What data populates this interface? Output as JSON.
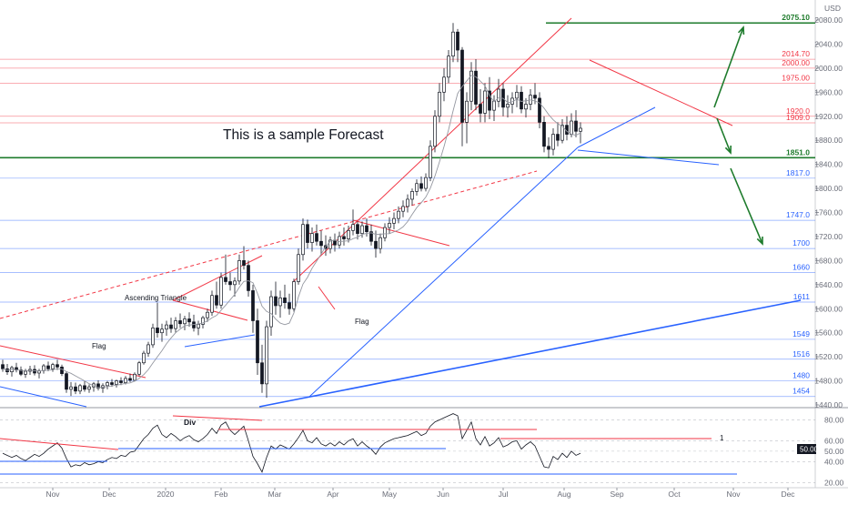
{
  "chart_data": {
    "type": "candlestick",
    "currency_label": "USD",
    "annotation_text": "This is a sample Forecast",
    "price_axis": {
      "ylim": [
        1440,
        2100
      ],
      "ticks": [
        1440,
        1480,
        1520,
        1560,
        1600,
        1640,
        1680,
        1720,
        1760,
        1800,
        1840,
        1880,
        1920,
        1960,
        2000,
        2040,
        2080
      ]
    },
    "time_axis": {
      "labels": [
        "Nov",
        "Dec",
        "2020",
        "Feb",
        "Mar",
        "Apr",
        "May",
        "Jun",
        "Jul",
        "Aug",
        "Sep",
        "Oct",
        "Nov",
        "Dec"
      ]
    },
    "levels": [
      {
        "value": 2075.1,
        "label": "2075.10",
        "color": "#1e7b2c",
        "kind": "major-green"
      },
      {
        "value": 2014.7,
        "label": "2014.70",
        "color": "#f23645",
        "kind": "red"
      },
      {
        "value": 2000.0,
        "label": "2000.00",
        "color": "#f23645",
        "kind": "red"
      },
      {
        "value": 1975.0,
        "label": "1975.00",
        "color": "#f23645",
        "kind": "red"
      },
      {
        "value": 1920.0,
        "label": "1920.0",
        "color": "#f23645",
        "kind": "red"
      },
      {
        "value": 1909.0,
        "label": "1909.0",
        "color": "#f23645",
        "kind": "red"
      },
      {
        "value": 1851.0,
        "label": "1851.0",
        "color": "#1e7b2c",
        "kind": "major-green"
      },
      {
        "value": 1817.0,
        "label": "1817.0",
        "color": "#2962ff",
        "kind": "blue"
      },
      {
        "value": 1747.0,
        "label": "1747.0",
        "color": "#2962ff",
        "kind": "blue"
      },
      {
        "value": 1700,
        "label": "1700",
        "color": "#2962ff",
        "kind": "blue"
      },
      {
        "value": 1660,
        "label": "1660",
        "color": "#2962ff",
        "kind": "blue"
      },
      {
        "value": 1611,
        "label": "1611",
        "color": "#2962ff",
        "kind": "blue"
      },
      {
        "value": 1549,
        "label": "1549",
        "color": "#2962ff",
        "kind": "blue"
      },
      {
        "value": 1516,
        "label": "1516",
        "color": "#2962ff",
        "kind": "blue"
      },
      {
        "value": 1480,
        "label": "1480",
        "color": "#2962ff",
        "kind": "blue"
      },
      {
        "value": 1454,
        "label": "1454",
        "color": "#2962ff",
        "kind": "blue"
      }
    ],
    "pattern_labels": [
      "Ascending Triangle",
      "Flag",
      "Flag"
    ],
    "candles": [
      {
        "t": 0,
        "o": 1507,
        "h": 1515,
        "l": 1495,
        "c": 1500
      },
      {
        "t": 1,
        "o": 1500,
        "h": 1508,
        "l": 1490,
        "c": 1495
      },
      {
        "t": 2,
        "o": 1495,
        "h": 1505,
        "l": 1487,
        "c": 1502
      },
      {
        "t": 3,
        "o": 1502,
        "h": 1510,
        "l": 1494,
        "c": 1498
      },
      {
        "t": 4,
        "o": 1498,
        "h": 1504,
        "l": 1488,
        "c": 1491
      },
      {
        "t": 5,
        "o": 1491,
        "h": 1500,
        "l": 1485,
        "c": 1496
      },
      {
        "t": 6,
        "o": 1496,
        "h": 1505,
        "l": 1490,
        "c": 1499
      },
      {
        "t": 7,
        "o": 1499,
        "h": 1506,
        "l": 1489,
        "c": 1493
      },
      {
        "t": 8,
        "o": 1493,
        "h": 1500,
        "l": 1484,
        "c": 1497
      },
      {
        "t": 9,
        "o": 1497,
        "h": 1508,
        "l": 1492,
        "c": 1505
      },
      {
        "t": 10,
        "o": 1505,
        "h": 1512,
        "l": 1496,
        "c": 1500
      },
      {
        "t": 11,
        "o": 1500,
        "h": 1510,
        "l": 1495,
        "c": 1507
      },
      {
        "t": 12,
        "o": 1507,
        "h": 1515,
        "l": 1498,
        "c": 1503
      },
      {
        "t": 13,
        "o": 1503,
        "h": 1507,
        "l": 1488,
        "c": 1492
      },
      {
        "t": 14,
        "o": 1492,
        "h": 1496,
        "l": 1460,
        "c": 1466
      },
      {
        "t": 15,
        "o": 1466,
        "h": 1478,
        "l": 1455,
        "c": 1470
      },
      {
        "t": 16,
        "o": 1470,
        "h": 1477,
        "l": 1458,
        "c": 1463
      },
      {
        "t": 17,
        "o": 1463,
        "h": 1475,
        "l": 1458,
        "c": 1472
      },
      {
        "t": 18,
        "o": 1472,
        "h": 1480,
        "l": 1462,
        "c": 1466
      },
      {
        "t": 19,
        "o": 1466,
        "h": 1474,
        "l": 1460,
        "c": 1470
      },
      {
        "t": 20,
        "o": 1470,
        "h": 1478,
        "l": 1462,
        "c": 1475
      },
      {
        "t": 21,
        "o": 1475,
        "h": 1481,
        "l": 1464,
        "c": 1468
      },
      {
        "t": 22,
        "o": 1468,
        "h": 1476,
        "l": 1460,
        "c": 1472
      },
      {
        "t": 23,
        "o": 1472,
        "h": 1480,
        "l": 1466,
        "c": 1477
      },
      {
        "t": 24,
        "o": 1477,
        "h": 1483,
        "l": 1470,
        "c": 1474
      },
      {
        "t": 25,
        "o": 1474,
        "h": 1482,
        "l": 1469,
        "c": 1480
      },
      {
        "t": 26,
        "o": 1480,
        "h": 1486,
        "l": 1473,
        "c": 1477
      },
      {
        "t": 27,
        "o": 1477,
        "h": 1488,
        "l": 1474,
        "c": 1484
      },
      {
        "t": 28,
        "o": 1484,
        "h": 1492,
        "l": 1478,
        "c": 1481
      },
      {
        "t": 29,
        "o": 1481,
        "h": 1494,
        "l": 1479,
        "c": 1491
      },
      {
        "t": 30,
        "o": 1491,
        "h": 1513,
        "l": 1488,
        "c": 1510
      },
      {
        "t": 31,
        "o": 1510,
        "h": 1530,
        "l": 1507,
        "c": 1526
      },
      {
        "t": 32,
        "o": 1526,
        "h": 1545,
        "l": 1520,
        "c": 1540
      },
      {
        "t": 33,
        "o": 1540,
        "h": 1575,
        "l": 1535,
        "c": 1568
      },
      {
        "t": 34,
        "o": 1568,
        "h": 1610,
        "l": 1552,
        "c": 1560
      },
      {
        "t": 35,
        "o": 1560,
        "h": 1575,
        "l": 1545,
        "c": 1566
      },
      {
        "t": 36,
        "o": 1566,
        "h": 1580,
        "l": 1555,
        "c": 1573
      },
      {
        "t": 37,
        "o": 1573,
        "h": 1585,
        "l": 1560,
        "c": 1567
      },
      {
        "t": 38,
        "o": 1567,
        "h": 1586,
        "l": 1560,
        "c": 1580
      },
      {
        "t": 39,
        "o": 1580,
        "h": 1592,
        "l": 1568,
        "c": 1575
      },
      {
        "t": 40,
        "o": 1575,
        "h": 1588,
        "l": 1564,
        "c": 1583
      },
      {
        "t": 41,
        "o": 1583,
        "h": 1594,
        "l": 1570,
        "c": 1578
      },
      {
        "t": 42,
        "o": 1578,
        "h": 1590,
        "l": 1562,
        "c": 1568
      },
      {
        "t": 43,
        "o": 1568,
        "h": 1580,
        "l": 1556,
        "c": 1574
      },
      {
        "t": 44,
        "o": 1574,
        "h": 1588,
        "l": 1567,
        "c": 1585
      },
      {
        "t": 45,
        "o": 1585,
        "h": 1600,
        "l": 1578,
        "c": 1594
      },
      {
        "t": 46,
        "o": 1594,
        "h": 1630,
        "l": 1588,
        "c": 1622
      },
      {
        "t": 47,
        "o": 1622,
        "h": 1645,
        "l": 1600,
        "c": 1606
      },
      {
        "t": 48,
        "o": 1606,
        "h": 1660,
        "l": 1600,
        "c": 1652
      },
      {
        "t": 49,
        "o": 1652,
        "h": 1690,
        "l": 1640,
        "c": 1645
      },
      {
        "t": 50,
        "o": 1645,
        "h": 1660,
        "l": 1630,
        "c": 1640
      },
      {
        "t": 51,
        "o": 1640,
        "h": 1652,
        "l": 1620,
        "c": 1646
      },
      {
        "t": 52,
        "o": 1646,
        "h": 1690,
        "l": 1640,
        "c": 1680
      },
      {
        "t": 53,
        "o": 1680,
        "h": 1704,
        "l": 1665,
        "c": 1672
      },
      {
        "t": 54,
        "o": 1672,
        "h": 1680,
        "l": 1620,
        "c": 1630
      },
      {
        "t": 55,
        "o": 1630,
        "h": 1640,
        "l": 1560,
        "c": 1580
      },
      {
        "t": 56,
        "o": 1580,
        "h": 1600,
        "l": 1490,
        "c": 1510
      },
      {
        "t": 57,
        "o": 1510,
        "h": 1540,
        "l": 1460,
        "c": 1475
      },
      {
        "t": 58,
        "o": 1475,
        "h": 1580,
        "l": 1452,
        "c": 1570
      },
      {
        "t": 59,
        "o": 1570,
        "h": 1630,
        "l": 1555,
        "c": 1620
      },
      {
        "t": 60,
        "o": 1620,
        "h": 1645,
        "l": 1590,
        "c": 1605
      },
      {
        "t": 61,
        "o": 1605,
        "h": 1630,
        "l": 1585,
        "c": 1618
      },
      {
        "t": 62,
        "o": 1618,
        "h": 1640,
        "l": 1600,
        "c": 1610
      },
      {
        "t": 63,
        "o": 1610,
        "h": 1625,
        "l": 1590,
        "c": 1600
      },
      {
        "t": 64,
        "o": 1600,
        "h": 1650,
        "l": 1595,
        "c": 1645
      },
      {
        "t": 65,
        "o": 1645,
        "h": 1700,
        "l": 1640,
        "c": 1690
      },
      {
        "t": 66,
        "o": 1690,
        "h": 1750,
        "l": 1680,
        "c": 1740
      },
      {
        "t": 67,
        "o": 1740,
        "h": 1748,
        "l": 1700,
        "c": 1710
      },
      {
        "t": 68,
        "o": 1710,
        "h": 1735,
        "l": 1695,
        "c": 1725
      },
      {
        "t": 69,
        "o": 1725,
        "h": 1740,
        "l": 1705,
        "c": 1712
      },
      {
        "t": 70,
        "o": 1712,
        "h": 1730,
        "l": 1690,
        "c": 1705
      },
      {
        "t": 71,
        "o": 1705,
        "h": 1722,
        "l": 1688,
        "c": 1700
      },
      {
        "t": 72,
        "o": 1700,
        "h": 1720,
        "l": 1692,
        "c": 1714
      },
      {
        "t": 73,
        "o": 1714,
        "h": 1725,
        "l": 1695,
        "c": 1706
      },
      {
        "t": 74,
        "o": 1706,
        "h": 1728,
        "l": 1700,
        "c": 1720
      },
      {
        "t": 75,
        "o": 1720,
        "h": 1735,
        "l": 1705,
        "c": 1716
      },
      {
        "t": 76,
        "o": 1716,
        "h": 1738,
        "l": 1710,
        "c": 1730
      },
      {
        "t": 77,
        "o": 1730,
        "h": 1765,
        "l": 1722,
        "c": 1740
      },
      {
        "t": 78,
        "o": 1740,
        "h": 1745,
        "l": 1715,
        "c": 1725
      },
      {
        "t": 79,
        "o": 1725,
        "h": 1745,
        "l": 1718,
        "c": 1738
      },
      {
        "t": 80,
        "o": 1738,
        "h": 1750,
        "l": 1720,
        "c": 1728
      },
      {
        "t": 81,
        "o": 1728,
        "h": 1740,
        "l": 1705,
        "c": 1712
      },
      {
        "t": 82,
        "o": 1712,
        "h": 1730,
        "l": 1685,
        "c": 1700
      },
      {
        "t": 83,
        "o": 1700,
        "h": 1725,
        "l": 1692,
        "c": 1718
      },
      {
        "t": 84,
        "o": 1718,
        "h": 1742,
        "l": 1712,
        "c": 1735
      },
      {
        "t": 85,
        "o": 1735,
        "h": 1752,
        "l": 1725,
        "c": 1742
      },
      {
        "t": 86,
        "o": 1742,
        "h": 1760,
        "l": 1732,
        "c": 1750
      },
      {
        "t": 87,
        "o": 1750,
        "h": 1770,
        "l": 1742,
        "c": 1762
      },
      {
        "t": 88,
        "o": 1762,
        "h": 1780,
        "l": 1752,
        "c": 1770
      },
      {
        "t": 89,
        "o": 1770,
        "h": 1790,
        "l": 1760,
        "c": 1782
      },
      {
        "t": 90,
        "o": 1782,
        "h": 1800,
        "l": 1772,
        "c": 1795
      },
      {
        "t": 91,
        "o": 1795,
        "h": 1815,
        "l": 1788,
        "c": 1808
      },
      {
        "t": 92,
        "o": 1808,
        "h": 1820,
        "l": 1795,
        "c": 1800
      },
      {
        "t": 93,
        "o": 1800,
        "h": 1825,
        "l": 1795,
        "c": 1818
      },
      {
        "t": 94,
        "o": 1818,
        "h": 1880,
        "l": 1812,
        "c": 1870
      },
      {
        "t": 95,
        "o": 1870,
        "h": 1930,
        "l": 1860,
        "c": 1920
      },
      {
        "t": 96,
        "o": 1920,
        "h": 1975,
        "l": 1910,
        "c": 1960
      },
      {
        "t": 97,
        "o": 1960,
        "h": 2000,
        "l": 1945,
        "c": 1985
      },
      {
        "t": 98,
        "o": 1985,
        "h": 2030,
        "l": 1975,
        "c": 2020
      },
      {
        "t": 99,
        "o": 2020,
        "h": 2075,
        "l": 2010,
        "c": 2060
      },
      {
        "t": 100,
        "o": 2060,
        "h": 2065,
        "l": 2010,
        "c": 2030
      },
      {
        "t": 101,
        "o": 2030,
        "h": 2035,
        "l": 1870,
        "c": 1910
      },
      {
        "t": 102,
        "o": 1910,
        "h": 1960,
        "l": 1875,
        "c": 1945
      },
      {
        "t": 103,
        "o": 1945,
        "h": 2010,
        "l": 1930,
        "c": 1995
      },
      {
        "t": 104,
        "o": 1995,
        "h": 2015,
        "l": 1930,
        "c": 1940
      },
      {
        "t": 105,
        "o": 1940,
        "h": 1965,
        "l": 1910,
        "c": 1925
      },
      {
        "t": 106,
        "o": 1925,
        "h": 1975,
        "l": 1910,
        "c": 1962
      },
      {
        "t": 107,
        "o": 1962,
        "h": 1985,
        "l": 1915,
        "c": 1930
      },
      {
        "t": 108,
        "o": 1930,
        "h": 1955,
        "l": 1912,
        "c": 1945
      },
      {
        "t": 109,
        "o": 1945,
        "h": 1982,
        "l": 1935,
        "c": 1965
      },
      {
        "t": 110,
        "o": 1965,
        "h": 1975,
        "l": 1920,
        "c": 1935
      },
      {
        "t": 111,
        "o": 1935,
        "h": 1955,
        "l": 1918,
        "c": 1940
      },
      {
        "t": 112,
        "o": 1940,
        "h": 1960,
        "l": 1925,
        "c": 1950
      },
      {
        "t": 113,
        "o": 1950,
        "h": 1972,
        "l": 1935,
        "c": 1960
      },
      {
        "t": 114,
        "o": 1960,
        "h": 1970,
        "l": 1925,
        "c": 1932
      },
      {
        "t": 115,
        "o": 1932,
        "h": 1950,
        "l": 1918,
        "c": 1940
      },
      {
        "t": 116,
        "o": 1940,
        "h": 1965,
        "l": 1930,
        "c": 1955
      },
      {
        "t": 117,
        "o": 1955,
        "h": 1975,
        "l": 1940,
        "c": 1950
      },
      {
        "t": 118,
        "o": 1950,
        "h": 1960,
        "l": 1900,
        "c": 1910
      },
      {
        "t": 119,
        "o": 1910,
        "h": 1920,
        "l": 1860,
        "c": 1870
      },
      {
        "t": 120,
        "o": 1870,
        "h": 1885,
        "l": 1850,
        "c": 1865
      },
      {
        "t": 121,
        "o": 1865,
        "h": 1900,
        "l": 1855,
        "c": 1890
      },
      {
        "t": 122,
        "o": 1890,
        "h": 1910,
        "l": 1870,
        "c": 1880
      },
      {
        "t": 123,
        "o": 1880,
        "h": 1915,
        "l": 1875,
        "c": 1905
      },
      {
        "t": 124,
        "o": 1905,
        "h": 1920,
        "l": 1880,
        "c": 1890
      },
      {
        "t": 125,
        "o": 1890,
        "h": 1925,
        "l": 1885,
        "c": 1912
      },
      {
        "t": 126,
        "o": 1912,
        "h": 1930,
        "l": 1885,
        "c": 1895
      },
      {
        "t": 127,
        "o": 1895,
        "h": 1910,
        "l": 1875,
        "c": 1900
      }
    ],
    "rsi_axis": {
      "ylim": [
        15,
        90
      ],
      "ticks": [
        20.0,
        40.0,
        50.0,
        60.0,
        80.0
      ],
      "current_value": "50.00"
    },
    "rsi_values": [
      48,
      46,
      44,
      46,
      43,
      41,
      44,
      47,
      45,
      48,
      52,
      55,
      58,
      53,
      43,
      35,
      37,
      36,
      39,
      37,
      38,
      40,
      39,
      42,
      44,
      43,
      46,
      45,
      49,
      50,
      56,
      62,
      66,
      72,
      75,
      66,
      63,
      67,
      64,
      60,
      63,
      65,
      61,
      59,
      62,
      66,
      72,
      67,
      75,
      78,
      70,
      66,
      70,
      74,
      60,
      45,
      38,
      30,
      44,
      55,
      52,
      56,
      54,
      52,
      57,
      63,
      70,
      60,
      58,
      63,
      57,
      55,
      58,
      55,
      59,
      56,
      60,
      62,
      55,
      59,
      55,
      52,
      47,
      54,
      58,
      60,
      62,
      63,
      64,
      65,
      67,
      69,
      65,
      67,
      74,
      78,
      80,
      82,
      84,
      86,
      84,
      62,
      70,
      78,
      62,
      56,
      64,
      55,
      58,
      63,
      54,
      56,
      59,
      60,
      52,
      56,
      59,
      55,
      45,
      35,
      34,
      45,
      42,
      48,
      44,
      50,
      46,
      48
    ],
    "rsi_marker_label": "1",
    "div_label": "Div"
  }
}
